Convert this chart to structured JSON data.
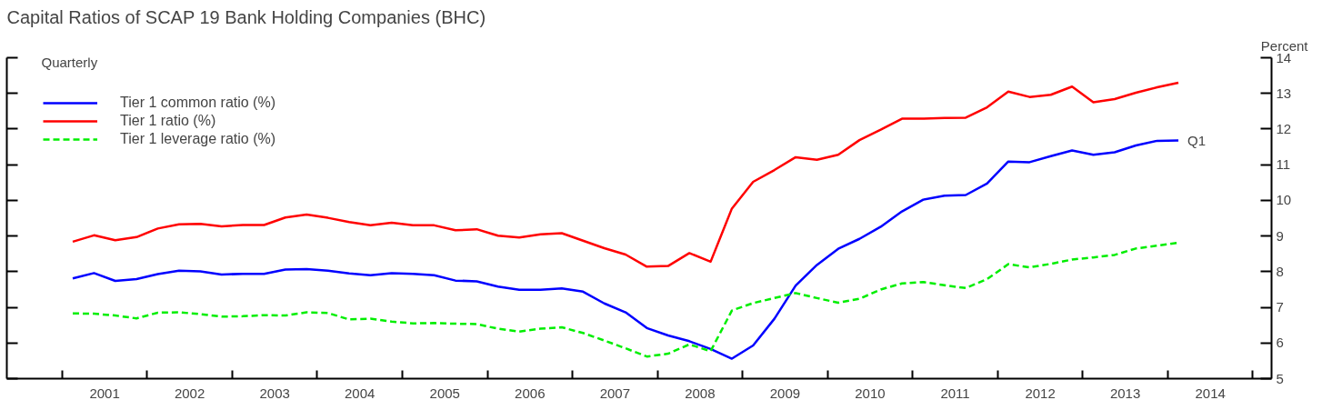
{
  "chart_data": {
    "type": "line",
    "title": "Capital Ratios of SCAP 19 Bank Holding Companies (BHC)",
    "ylabel": "Percent",
    "x": [
      2001.125,
      2001.375,
      2001.625,
      2001.875,
      2002.125,
      2002.375,
      2002.625,
      2002.875,
      2003.125,
      2003.375,
      2003.625,
      2003.875,
      2004.125,
      2004.375,
      2004.625,
      2004.875,
      2005.125,
      2005.375,
      2005.625,
      2005.875,
      2006.125,
      2006.375,
      2006.625,
      2006.875,
      2007.125,
      2007.375,
      2007.625,
      2007.875,
      2008.125,
      2008.375,
      2008.625,
      2008.875,
      2009.125,
      2009.375,
      2009.625,
      2009.875,
      2010.125,
      2010.375,
      2010.625,
      2010.875,
      2011.125,
      2011.375,
      2011.625,
      2011.875,
      2012.125,
      2012.375,
      2012.625,
      2012.875,
      2013.125,
      2013.375,
      2013.625,
      2013.875,
      2014.125
    ],
    "series": [
      {
        "name": "Tier 1 common ratio (%)",
        "color": "#0000ff",
        "line_style": "solid",
        "values": [
          7.81,
          7.96,
          7.74,
          7.79,
          7.93,
          8.03,
          8.01,
          7.92,
          7.94,
          7.94,
          8.06,
          8.07,
          8.03,
          7.95,
          7.9,
          7.96,
          7.94,
          7.9,
          7.75,
          7.73,
          7.58,
          7.49,
          7.49,
          7.53,
          7.44,
          7.11,
          6.86,
          6.42,
          6.21,
          6.05,
          5.83,
          5.56,
          5.93,
          6.68,
          7.61,
          8.19,
          8.64,
          8.92,
          9.26,
          9.69,
          10.02,
          10.13,
          10.15,
          10.47,
          11.09,
          11.07,
          11.24,
          11.4,
          11.28,
          11.35,
          11.54,
          11.67,
          11.68
        ]
      },
      {
        "name": "Tier 1 ratio (%)",
        "color": "#ff0000",
        "line_style": "solid",
        "values": [
          8.84,
          9.02,
          8.88,
          8.97,
          9.21,
          9.33,
          9.34,
          9.27,
          9.31,
          9.31,
          9.52,
          9.6,
          9.51,
          9.39,
          9.3,
          9.37,
          9.3,
          9.3,
          9.16,
          9.19,
          9.01,
          8.96,
          9.05,
          9.08,
          8.87,
          8.66,
          8.48,
          8.14,
          8.16,
          8.52,
          8.28,
          9.77,
          10.52,
          10.85,
          11.21,
          11.14,
          11.28,
          11.69,
          11.98,
          12.29,
          12.29,
          12.31,
          12.32,
          12.61,
          13.05,
          12.9,
          12.96,
          13.19,
          12.75,
          12.84,
          13.02,
          13.17,
          13.3
        ]
      },
      {
        "name": "Tier 1 leverage ratio (%)",
        "color": "#00ee00",
        "line_style": "dashed",
        "values": [
          6.83,
          6.82,
          6.77,
          6.69,
          6.85,
          6.86,
          6.81,
          6.74,
          6.75,
          6.78,
          6.77,
          6.86,
          6.84,
          6.66,
          6.68,
          6.6,
          6.55,
          6.56,
          6.54,
          6.53,
          6.4,
          6.32,
          6.4,
          6.44,
          6.28,
          6.07,
          5.85,
          5.62,
          5.7,
          5.96,
          5.77,
          6.91,
          7.12,
          7.26,
          7.4,
          7.26,
          7.13,
          7.24,
          7.5,
          7.67,
          7.71,
          7.62,
          7.54,
          7.79,
          8.21,
          8.12,
          8.22,
          8.34,
          8.4,
          8.47,
          8.65,
          8.73,
          8.81
        ]
      }
    ],
    "xlim": [
      2000.35,
      2015.22
    ],
    "xticks": [
      {
        "value": 2001,
        "label": null
      },
      {
        "value": 2001.5,
        "label": "2001"
      },
      {
        "value": 2002,
        "label": null
      },
      {
        "value": 2002.5,
        "label": "2002"
      },
      {
        "value": 2003,
        "label": null
      },
      {
        "value": 2003.5,
        "label": "2003"
      },
      {
        "value": 2004,
        "label": null
      },
      {
        "value": 2004.5,
        "label": "2004"
      },
      {
        "value": 2005,
        "label": null
      },
      {
        "value": 2005.5,
        "label": "2005"
      },
      {
        "value": 2006,
        "label": null
      },
      {
        "value": 2006.5,
        "label": "2006"
      },
      {
        "value": 2007,
        "label": null
      },
      {
        "value": 2007.5,
        "label": "2007"
      },
      {
        "value": 2008,
        "label": null
      },
      {
        "value": 2008.5,
        "label": "2008"
      },
      {
        "value": 2009,
        "label": null
      },
      {
        "value": 2009.5,
        "label": "2009"
      },
      {
        "value": 2010,
        "label": null
      },
      {
        "value": 2010.5,
        "label": "2010"
      },
      {
        "value": 2011,
        "label": null
      },
      {
        "value": 2011.5,
        "label": "2011"
      },
      {
        "value": 2012,
        "label": null
      },
      {
        "value": 2012.5,
        "label": "2012"
      },
      {
        "value": 2013,
        "label": null
      },
      {
        "value": 2013.5,
        "label": "2013"
      },
      {
        "value": 2014,
        "label": null
      },
      {
        "value": 2014.5,
        "label": "2014"
      },
      {
        "value": 2015,
        "label": null
      }
    ],
    "ylim": [
      5,
      14
    ],
    "yticks": [
      5,
      6,
      7,
      8,
      9,
      10,
      11,
      12,
      13,
      14
    ],
    "grid": false,
    "legend": "top left",
    "marker": "none",
    "annotations": [
      "Quarterly",
      {
        "text": "Q1",
        "x": 2014.125,
        "y": 11.68
      }
    ]
  }
}
